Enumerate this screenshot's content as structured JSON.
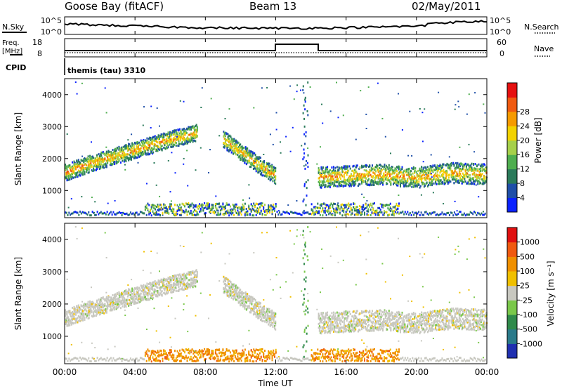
{
  "header": {
    "station": "Goose Bay (fitACF)",
    "beam": "Beam 13",
    "date": "02/May/2011"
  },
  "side_labels": {
    "nsky": "N.Sky",
    "nsearch": "N.Search",
    "freq_line1": "Freq.",
    "freq_line2": "[MHz]",
    "nave": "Nave",
    "cpid": "CPID",
    "cpid_value": "themis (tau) 3310"
  },
  "noise_panel": {
    "left_ticks": [
      "10^5",
      "10^0"
    ],
    "right_ticks": [
      "10^5",
      "10^0"
    ]
  },
  "freq_panel": {
    "left_ticks": [
      "18",
      "8"
    ],
    "right_ticks": [
      "60",
      "0"
    ]
  },
  "colors": {
    "power": [
      "#0a22ff",
      "#1f4fa8",
      "#2a7a5a",
      "#4fae4f",
      "#a6d04a",
      "#f2d200",
      "#f59a00",
      "#f05a10",
      "#e61010"
    ],
    "velocity": [
      "#2030b0",
      "#2a7a8a",
      "#2f8a4a",
      "#7ac84a",
      "#c8c8c0",
      "#f0c000",
      "#f09000",
      "#f05a10",
      "#e01010"
    ]
  },
  "chart_data": [
    {
      "type": "heatmap",
      "title": "",
      "xlabel": "",
      "ylabel": "Slant Range [km]",
      "x_ticks": [
        "00:00",
        "04:00",
        "08:00",
        "12:00",
        "16:00",
        "20:00",
        "00:00"
      ],
      "y_ticks": [
        "1000",
        "2000",
        "3000",
        "4000"
      ],
      "ylim": [
        150,
        4500
      ],
      "colorbar": {
        "label": "Power [dB]",
        "ticks": [
          "4",
          "8",
          "12",
          "16",
          "20",
          "24",
          "28"
        ]
      },
      "echo_bands": [
        {
          "name": "",
          "hours": [
            0,
            1.5,
            3,
            4.5,
            6,
            7.5
          ],
          "ranges": [
            1550,
            1850,
            2100,
            2350,
            2600,
            2800
          ]
        },
        {
          "name": "",
          "hours": [
            9,
            10,
            11,
            12
          ],
          "ranges": [
            2600,
            2200,
            1800,
            1450
          ]
        },
        {
          "name": "",
          "hours": [
            14.4,
            16,
            18,
            20,
            22,
            24
          ],
          "ranges": [
            1400,
            1450,
            1500,
            1400,
            1550,
            1500
          ]
        }
      ]
    },
    {
      "type": "heatmap",
      "title": "",
      "xlabel": "Time UT",
      "ylabel": "Slant Range [km]",
      "x_ticks": [
        "00:00",
        "04:00",
        "08:00",
        "12:00",
        "16:00",
        "20:00",
        "00:00"
      ],
      "y_ticks": [
        "1000",
        "2000",
        "3000",
        "4000"
      ],
      "ylim": [
        150,
        4500
      ],
      "colorbar": {
        "label": "Velocity [m s⁻¹]",
        "ticks": [
          "1000",
          "500",
          "100",
          "25",
          "-25",
          "-100",
          "-500",
          "-1000"
        ]
      }
    }
  ]
}
